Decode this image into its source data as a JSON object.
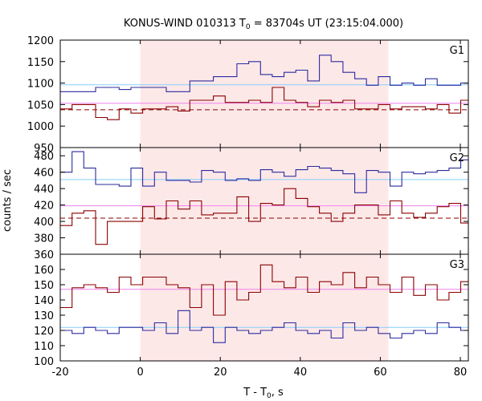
{
  "chart_data": {
    "type": "line",
    "title": "KONUS-WIND 010313 T",
    "title_sub": "0",
    "title_rest": " = 83704s UT (23:15:04.000)",
    "xlabel_main": "T - T",
    "xlabel_sub": "0",
    "xlabel_rest": ", s",
    "ylabel": "counts / sec",
    "xlim": [
      -20,
      82
    ],
    "xticks": [
      -20,
      0,
      20,
      40,
      60,
      80
    ],
    "shaded_interval": [
      0,
      62
    ],
    "colors": {
      "blue": "#2b2b9e",
      "dark_red": "#8b0000",
      "cyan": "#87cefa",
      "pink": "#ee82ee",
      "shade": "#fde8e8",
      "baseline_dashed": "#8b0000"
    },
    "panels": [
      {
        "label": "G1",
        "ylim": [
          950,
          1200
        ],
        "yticks": [
          950,
          1000,
          1050,
          1100,
          1150,
          1200
        ],
        "ref_lines": [
          {
            "y": 1096,
            "color": "cyan",
            "style": "solid"
          },
          {
            "y": 1053,
            "color": "pink",
            "style": "solid"
          },
          {
            "y": 1038,
            "color": "dark_red",
            "style": "dashed"
          }
        ],
        "series": [
          {
            "color": "blue",
            "x_start": -20,
            "bin": 2.944,
            "values": [
              1080,
              1080,
              1080,
              1090,
              1090,
              1085,
              1090,
              1090,
              1090,
              1080,
              1080,
              1105,
              1105,
              1115,
              1115,
              1145,
              1150,
              1120,
              1115,
              1125,
              1130,
              1105,
              1165,
              1150,
              1125,
              1110,
              1095,
              1115,
              1095,
              1100,
              1095,
              1110,
              1095,
              1095,
              1100,
              1095,
              1100
            ]
          },
          {
            "color": "dark_red",
            "x_start": -20,
            "bin": 2.944,
            "values": [
              1040,
              1050,
              1050,
              1020,
              1015,
              1040,
              1030,
              1040,
              1040,
              1045,
              1035,
              1060,
              1060,
              1070,
              1055,
              1055,
              1060,
              1055,
              1090,
              1060,
              1055,
              1045,
              1060,
              1055,
              1060,
              1040,
              1040,
              1050,
              1040,
              1045,
              1045,
              1040,
              1050,
              1030,
              1060,
              1050,
              1035,
              1035,
              1025,
              1030,
              1025,
              1035,
              1030,
              1035,
              1035
            ]
          }
        ]
      },
      {
        "label": "G2",
        "ylim": [
          360,
          490
        ],
        "yticks": [
          360,
          380,
          400,
          420,
          440,
          460,
          480
        ],
        "ref_lines": [
          {
            "y": 451,
            "color": "cyan",
            "style": "solid"
          },
          {
            "y": 419,
            "color": "pink",
            "style": "solid"
          },
          {
            "y": 404,
            "color": "dark_red",
            "style": "dashed"
          }
        ],
        "series": [
          {
            "color": "blue",
            "x_start": -20,
            "bin": 2.944,
            "values": [
              460,
              485,
              465,
              445,
              445,
              443,
              465,
              443,
              460,
              450,
              450,
              448,
              462,
              460,
              450,
              452,
              450,
              463,
              460,
              455,
              463,
              467,
              465,
              462,
              458,
              435,
              462,
              460,
              443,
              460,
              458,
              460,
              462,
              465,
              475,
              460,
              470,
              455,
              450,
              460,
              458,
              470,
              465,
              455,
              460
            ]
          },
          {
            "color": "dark_red",
            "x_start": -20,
            "bin": 2.944,
            "values": [
              395,
              410,
              413,
              372,
              400,
              400,
              400,
              418,
              403,
              425,
              415,
              425,
              408,
              410,
              410,
              430,
              400,
              422,
              420,
              440,
              428,
              418,
              410,
              400,
              410,
              420,
              420,
              408,
              425,
              410,
              405,
              410,
              418,
              422,
              398,
              410,
              400,
              405,
              420,
              413,
              415,
              420,
              395,
              400,
              380
            ]
          }
        ]
      },
      {
        "label": "G3",
        "ylim": [
          100,
          170
        ],
        "yticks": [
          100,
          110,
          120,
          130,
          140,
          150,
          160
        ],
        "ref_lines": [
          {
            "y": 147,
            "color": "pink",
            "style": "solid"
          },
          {
            "y": 122,
            "color": "cyan",
            "style": "solid"
          }
        ],
        "series": [
          {
            "color": "dark_red",
            "x_start": -20,
            "bin": 2.944,
            "values": [
              135,
              148,
              150,
              148,
              145,
              155,
              150,
              155,
              155,
              150,
              148,
              135,
              150,
              130,
              152,
              140,
              145,
              163,
              152,
              148,
              155,
              145,
              152,
              150,
              158,
              148,
              155,
              150,
              145,
              155,
              143,
              150,
              140,
              145,
              152,
              145,
              155,
              148,
              150,
              155,
              148,
              140,
              150,
              155,
              148
            ]
          },
          {
            "color": "blue",
            "x_start": -20,
            "bin": 2.944,
            "values": [
              120,
              118,
              122,
              120,
              118,
              122,
              122,
              120,
              125,
              118,
              133,
              120,
              122,
              112,
              122,
              120,
              118,
              120,
              122,
              125,
              120,
              118,
              120,
              115,
              125,
              120,
              122,
              118,
              115,
              118,
              120,
              118,
              125,
              122,
              120,
              115,
              120,
              120,
              118,
              125,
              120,
              118,
              122,
              120,
              118
            ]
          }
        ]
      }
    ]
  }
}
